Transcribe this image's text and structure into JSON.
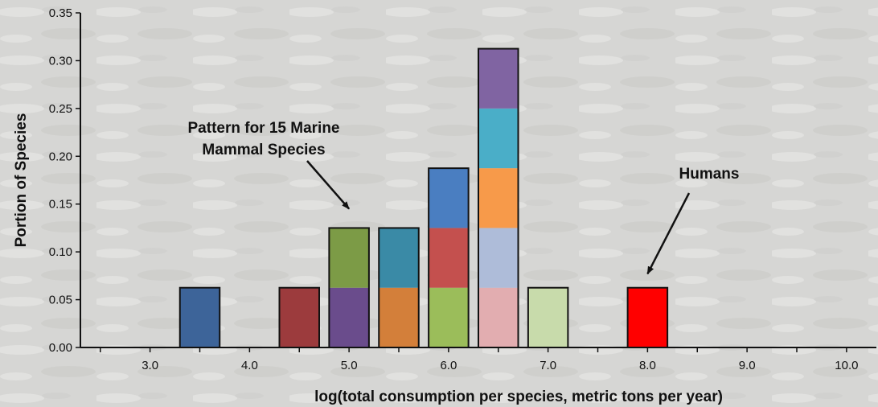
{
  "chart_data": {
    "type": "bar",
    "stacked": true,
    "xlabel": "log(total consumption per species, metric tons per year)",
    "ylabel": "Portion of Species",
    "xlim": [
      2.3,
      10.3
    ],
    "ylim": [
      0,
      0.35
    ],
    "x_ticks": [
      "3.0",
      "4.0",
      "5.0",
      "6.0",
      "7.0",
      "8.0",
      "9.0",
      "10.0"
    ],
    "y_ticks": [
      "0.00",
      "0.05",
      "0.10",
      "0.15",
      "0.20",
      "0.25",
      "0.30",
      "0.35"
    ],
    "grid": false,
    "bars": [
      {
        "x": 3.5,
        "segments": [
          {
            "value": 0.0625,
            "color": "#3d6499"
          }
        ]
      },
      {
        "x": 4.5,
        "segments": [
          {
            "value": 0.0625,
            "color": "#9c3b3d"
          }
        ]
      },
      {
        "x": 5.0,
        "segments": [
          {
            "value": 0.0625,
            "color": "#6a4c8c"
          },
          {
            "value": 0.0625,
            "color": "#7c9b46"
          }
        ]
      },
      {
        "x": 5.5,
        "segments": [
          {
            "value": 0.0625,
            "color": "#d37f3a"
          },
          {
            "value": 0.0625,
            "color": "#3a8aa6"
          }
        ]
      },
      {
        "x": 6.0,
        "segments": [
          {
            "value": 0.0625,
            "color": "#9bbd5a"
          },
          {
            "value": 0.0625,
            "color": "#c4504e"
          },
          {
            "value": 0.0625,
            "color": "#4a7ec1"
          }
        ]
      },
      {
        "x": 6.5,
        "segments": [
          {
            "value": 0.0625,
            "color": "#e2adb0"
          },
          {
            "value": 0.0625,
            "color": "#aebcd9"
          },
          {
            "value": 0.0625,
            "color": "#f79a4a"
          },
          {
            "value": 0.0625,
            "color": "#4aaec8"
          },
          {
            "value": 0.0625,
            "color": "#8064a2"
          }
        ]
      },
      {
        "x": 7.0,
        "segments": [
          {
            "value": 0.0625,
            "color": "#c8dbab"
          }
        ]
      },
      {
        "x": 8.0,
        "segments": [
          {
            "value": 0.0625,
            "color": "#ff0000"
          }
        ]
      }
    ],
    "annotations": [
      {
        "lines": [
          "Pattern for 15 Marine",
          "Mammal Species"
        ],
        "arrow_to": {
          "x": 5.0,
          "y": 0.145
        }
      },
      {
        "lines": [
          "Humans"
        ],
        "arrow_to": {
          "x": 8.0,
          "y": 0.077
        }
      }
    ]
  }
}
